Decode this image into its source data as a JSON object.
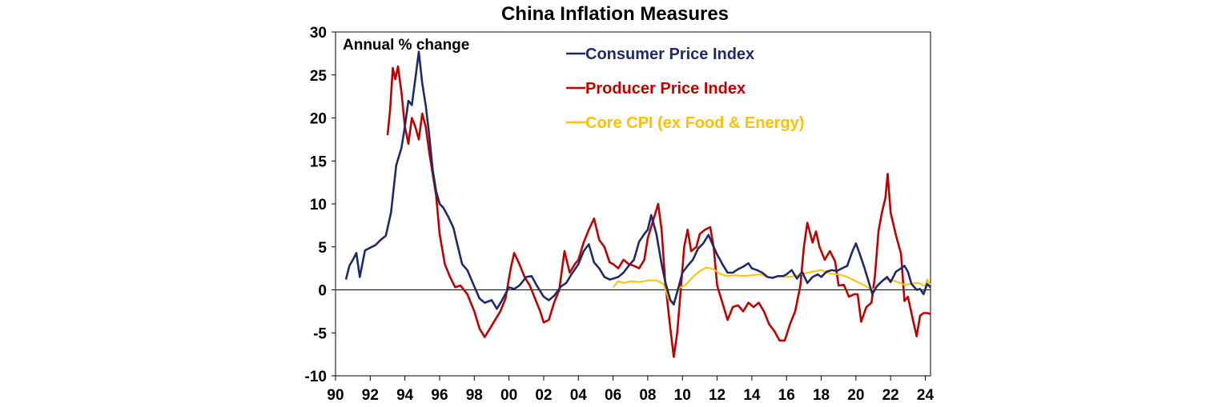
{
  "chart_data": {
    "type": "line",
    "title": "China Inflation Measures",
    "unit_label": "Annual % change",
    "xlabel": "",
    "ylabel": "",
    "xlim": [
      1990,
      2024.3
    ],
    "ylim": [
      -10,
      30
    ],
    "y_ticks": [
      30,
      25,
      20,
      15,
      10,
      5,
      0,
      -5,
      -10
    ],
    "x_ticks": [
      {
        "label": "90",
        "year": 1990
      },
      {
        "label": "92",
        "year": 1992
      },
      {
        "label": "94",
        "year": 1994
      },
      {
        "label": "96",
        "year": 1996
      },
      {
        "label": "98",
        "year": 1998
      },
      {
        "label": "00",
        "year": 2000
      },
      {
        "label": "02",
        "year": 2002
      },
      {
        "label": "04",
        "year": 2004
      },
      {
        "label": "06",
        "year": 2006
      },
      {
        "label": "08",
        "year": 2008
      },
      {
        "label": "10",
        "year": 2010
      },
      {
        "label": "12",
        "year": 2012
      },
      {
        "label": "14",
        "year": 2014
      },
      {
        "label": "16",
        "year": 2016
      },
      {
        "label": "18",
        "year": 2018
      },
      {
        "label": "20",
        "year": 2020
      },
      {
        "label": "22",
        "year": 2022
      },
      {
        "label": "24",
        "year": 2024
      }
    ],
    "legend_position": "top-center",
    "series": [
      {
        "name": "Consumer Price Index",
        "color": "#1f2a6b",
        "points": [
          [
            1990.6,
            1.2
          ],
          [
            1990.8,
            2.8
          ],
          [
            1991.0,
            3.5
          ],
          [
            1991.2,
            4.3
          ],
          [
            1991.4,
            1.5
          ],
          [
            1991.7,
            4.6
          ],
          [
            1992.0,
            4.9
          ],
          [
            1992.3,
            5.2
          ],
          [
            1992.6,
            5.8
          ],
          [
            1992.9,
            6.3
          ],
          [
            1993.2,
            9.0
          ],
          [
            1993.5,
            14.5
          ],
          [
            1993.8,
            16.5
          ],
          [
            1994.0,
            19.0
          ],
          [
            1994.2,
            22.0
          ],
          [
            1994.4,
            21.5
          ],
          [
            1994.6,
            24.5
          ],
          [
            1994.8,
            27.7
          ],
          [
            1995.0,
            24.0
          ],
          [
            1995.2,
            21.5
          ],
          [
            1995.4,
            18.0
          ],
          [
            1995.6,
            14.0
          ],
          [
            1995.8,
            11.5
          ],
          [
            1996.0,
            10.0
          ],
          [
            1996.2,
            9.6
          ],
          [
            1996.5,
            8.5
          ],
          [
            1996.8,
            7.2
          ],
          [
            1997.0,
            5.5
          ],
          [
            1997.3,
            3.0
          ],
          [
            1997.6,
            2.3
          ],
          [
            1998.0,
            0.4
          ],
          [
            1998.3,
            -1.0
          ],
          [
            1998.6,
            -1.5
          ],
          [
            1999.0,
            -1.2
          ],
          [
            1999.3,
            -2.2
          ],
          [
            1999.6,
            -1.2
          ],
          [
            2000.0,
            0.3
          ],
          [
            2000.3,
            0.1
          ],
          [
            2000.6,
            0.5
          ],
          [
            2001.0,
            1.5
          ],
          [
            2001.3,
            1.6
          ],
          [
            2001.6,
            0.5
          ],
          [
            2002.0,
            -0.8
          ],
          [
            2002.3,
            -1.2
          ],
          [
            2002.6,
            -0.7
          ],
          [
            2003.0,
            0.4
          ],
          [
            2003.3,
            0.8
          ],
          [
            2003.6,
            1.8
          ],
          [
            2004.0,
            3.0
          ],
          [
            2004.3,
            4.5
          ],
          [
            2004.6,
            5.3
          ],
          [
            2004.9,
            3.2
          ],
          [
            2005.2,
            2.5
          ],
          [
            2005.5,
            1.5
          ],
          [
            2005.8,
            1.2
          ],
          [
            2006.0,
            1.3
          ],
          [
            2006.3,
            1.5
          ],
          [
            2006.6,
            2.0
          ],
          [
            2006.9,
            2.8
          ],
          [
            2007.2,
            3.5
          ],
          [
            2007.5,
            5.6
          ],
          [
            2007.8,
            6.5
          ],
          [
            2008.0,
            7.0
          ],
          [
            2008.2,
            8.7
          ],
          [
            2008.5,
            6.5
          ],
          [
            2008.8,
            3.0
          ],
          [
            2009.0,
            1.0
          ],
          [
            2009.3,
            -1.2
          ],
          [
            2009.5,
            -1.7
          ],
          [
            2009.8,
            0.5
          ],
          [
            2010.0,
            2.0
          ],
          [
            2010.3,
            2.8
          ],
          [
            2010.6,
            3.5
          ],
          [
            2010.9,
            4.8
          ],
          [
            2011.2,
            5.4
          ],
          [
            2011.5,
            6.4
          ],
          [
            2011.8,
            5.0
          ],
          [
            2012.0,
            4.1
          ],
          [
            2012.3,
            3.0
          ],
          [
            2012.6,
            2.0
          ],
          [
            2012.9,
            2.0
          ],
          [
            2013.2,
            2.4
          ],
          [
            2013.5,
            2.7
          ],
          [
            2013.8,
            3.1
          ],
          [
            2014.0,
            2.5
          ],
          [
            2014.3,
            2.3
          ],
          [
            2014.6,
            2.0
          ],
          [
            2014.9,
            1.5
          ],
          [
            2015.2,
            1.4
          ],
          [
            2015.5,
            1.6
          ],
          [
            2015.8,
            1.6
          ],
          [
            2016.0,
            1.8
          ],
          [
            2016.3,
            2.3
          ],
          [
            2016.6,
            1.3
          ],
          [
            2016.9,
            2.1
          ],
          [
            2017.2,
            0.8
          ],
          [
            2017.5,
            1.5
          ],
          [
            2017.8,
            1.8
          ],
          [
            2018.0,
            1.5
          ],
          [
            2018.3,
            2.1
          ],
          [
            2018.6,
            2.3
          ],
          [
            2018.9,
            2.2
          ],
          [
            2019.2,
            2.5
          ],
          [
            2019.5,
            2.8
          ],
          [
            2019.8,
            4.5
          ],
          [
            2020.0,
            5.4
          ],
          [
            2020.2,
            4.3
          ],
          [
            2020.5,
            2.5
          ],
          [
            2020.8,
            0.5
          ],
          [
            2020.95,
            -0.5
          ],
          [
            2021.2,
            0.4
          ],
          [
            2021.5,
            1.0
          ],
          [
            2021.8,
            1.5
          ],
          [
            2022.0,
            0.9
          ],
          [
            2022.3,
            2.1
          ],
          [
            2022.6,
            2.5
          ],
          [
            2022.8,
            2.8
          ],
          [
            2023.0,
            2.1
          ],
          [
            2023.2,
            0.7
          ],
          [
            2023.5,
            0.0
          ],
          [
            2023.7,
            0.1
          ],
          [
            2023.9,
            -0.5
          ],
          [
            2024.1,
            0.7
          ],
          [
            2024.3,
            0.3
          ]
        ]
      },
      {
        "name": "Producer Price Index",
        "color": "#c00000",
        "points": [
          [
            1993.0,
            18.0
          ],
          [
            1993.15,
            21.0
          ],
          [
            1993.3,
            25.8
          ],
          [
            1993.45,
            24.5
          ],
          [
            1993.6,
            26.0
          ],
          [
            1993.8,
            23.0
          ],
          [
            1994.0,
            19.0
          ],
          [
            1994.2,
            17.0
          ],
          [
            1994.4,
            20.0
          ],
          [
            1994.6,
            19.0
          ],
          [
            1994.8,
            17.5
          ],
          [
            1995.0,
            20.5
          ],
          [
            1995.2,
            19.0
          ],
          [
            1995.4,
            16.0
          ],
          [
            1995.6,
            13.5
          ],
          [
            1995.8,
            11.0
          ],
          [
            1996.0,
            6.5
          ],
          [
            1996.3,
            3.0
          ],
          [
            1996.6,
            1.5
          ],
          [
            1996.9,
            0.3
          ],
          [
            1997.2,
            0.5
          ],
          [
            1997.6,
            -0.5
          ],
          [
            1998.0,
            -2.5
          ],
          [
            1998.3,
            -4.5
          ],
          [
            1998.6,
            -5.5
          ],
          [
            1998.9,
            -4.5
          ],
          [
            1999.2,
            -3.5
          ],
          [
            1999.5,
            -2.5
          ],
          [
            1999.8,
            -1.0
          ],
          [
            2000.1,
            2.5
          ],
          [
            2000.3,
            4.3
          ],
          [
            2000.6,
            3.0
          ],
          [
            2000.9,
            1.5
          ],
          [
            2001.2,
            0.5
          ],
          [
            2001.5,
            -1.0
          ],
          [
            2001.8,
            -2.5
          ],
          [
            2002.0,
            -3.8
          ],
          [
            2002.3,
            -3.5
          ],
          [
            2002.6,
            -1.5
          ],
          [
            2002.9,
            0.0
          ],
          [
            2003.2,
            4.5
          ],
          [
            2003.5,
            2.0
          ],
          [
            2003.8,
            3.0
          ],
          [
            2004.0,
            3.5
          ],
          [
            2004.3,
            5.5
          ],
          [
            2004.6,
            7.0
          ],
          [
            2004.9,
            8.3
          ],
          [
            2005.2,
            5.8
          ],
          [
            2005.5,
            5.0
          ],
          [
            2005.8,
            3.2
          ],
          [
            2006.0,
            3.0
          ],
          [
            2006.3,
            2.5
          ],
          [
            2006.6,
            3.5
          ],
          [
            2006.9,
            3.0
          ],
          [
            2007.2,
            2.8
          ],
          [
            2007.5,
            2.5
          ],
          [
            2007.8,
            3.5
          ],
          [
            2008.0,
            6.0
          ],
          [
            2008.3,
            8.0
          ],
          [
            2008.6,
            10.0
          ],
          [
            2008.8,
            7.0
          ],
          [
            2009.0,
            1.0
          ],
          [
            2009.3,
            -4.5
          ],
          [
            2009.5,
            -7.8
          ],
          [
            2009.7,
            -5.0
          ],
          [
            2009.9,
            0.0
          ],
          [
            2010.1,
            5.0
          ],
          [
            2010.3,
            7.0
          ],
          [
            2010.5,
            4.5
          ],
          [
            2010.8,
            5.0
          ],
          [
            2011.0,
            6.5
          ],
          [
            2011.3,
            7.0
          ],
          [
            2011.6,
            7.3
          ],
          [
            2011.8,
            5.0
          ],
          [
            2012.0,
            0.5
          ],
          [
            2012.3,
            -1.5
          ],
          [
            2012.6,
            -3.5
          ],
          [
            2012.9,
            -2.0
          ],
          [
            2013.2,
            -1.8
          ],
          [
            2013.5,
            -2.5
          ],
          [
            2013.8,
            -1.5
          ],
          [
            2014.1,
            -2.0
          ],
          [
            2014.4,
            -1.5
          ],
          [
            2014.7,
            -2.5
          ],
          [
            2015.0,
            -4.0
          ],
          [
            2015.3,
            -4.8
          ],
          [
            2015.6,
            -5.9
          ],
          [
            2015.9,
            -5.9
          ],
          [
            2016.2,
            -4.0
          ],
          [
            2016.5,
            -2.5
          ],
          [
            2016.8,
            0.5
          ],
          [
            2017.0,
            5.0
          ],
          [
            2017.2,
            7.8
          ],
          [
            2017.5,
            5.5
          ],
          [
            2017.7,
            6.8
          ],
          [
            2017.9,
            5.0
          ],
          [
            2018.2,
            3.5
          ],
          [
            2018.5,
            4.5
          ],
          [
            2018.8,
            3.3
          ],
          [
            2019.0,
            0.5
          ],
          [
            2019.3,
            0.6
          ],
          [
            2019.6,
            -0.8
          ],
          [
            2019.9,
            -0.5
          ],
          [
            2020.1,
            -0.5
          ],
          [
            2020.3,
            -3.7
          ],
          [
            2020.6,
            -2.0
          ],
          [
            2020.9,
            -1.5
          ],
          [
            2021.1,
            1.7
          ],
          [
            2021.3,
            6.8
          ],
          [
            2021.5,
            9.0
          ],
          [
            2021.7,
            10.7
          ],
          [
            2021.83,
            13.5
          ],
          [
            2022.0,
            9.0
          ],
          [
            2022.3,
            6.4
          ],
          [
            2022.6,
            4.2
          ],
          [
            2022.8,
            -1.3
          ],
          [
            2023.0,
            -0.8
          ],
          [
            2023.3,
            -3.6
          ],
          [
            2023.5,
            -5.4
          ],
          [
            2023.7,
            -3.0
          ],
          [
            2023.9,
            -2.7
          ],
          [
            2024.1,
            -2.7
          ],
          [
            2024.3,
            -2.8
          ]
        ]
      },
      {
        "name": "Core CPI (ex Food & Energy)",
        "color": "#ffc000",
        "points": [
          [
            2006.0,
            0.3
          ],
          [
            2006.3,
            1.0
          ],
          [
            2006.6,
            0.8
          ],
          [
            2007.0,
            1.0
          ],
          [
            2007.5,
            0.9
          ],
          [
            2008.0,
            1.1
          ],
          [
            2008.5,
            1.1
          ],
          [
            2008.9,
            0.7
          ],
          [
            2009.2,
            -1.1
          ],
          [
            2009.5,
            -1.4
          ],
          [
            2009.8,
            0.2
          ],
          [
            2010.2,
            0.6
          ],
          [
            2010.6,
            1.5
          ],
          [
            2011.0,
            2.2
          ],
          [
            2011.4,
            2.6
          ],
          [
            2011.8,
            2.4
          ],
          [
            2012.2,
            1.8
          ],
          [
            2012.6,
            1.6
          ],
          [
            2013.0,
            1.7
          ],
          [
            2013.5,
            1.6
          ],
          [
            2014.0,
            1.7
          ],
          [
            2014.5,
            1.8
          ],
          [
            2015.0,
            1.4
          ],
          [
            2015.5,
            1.6
          ],
          [
            2016.0,
            1.5
          ],
          [
            2016.5,
            1.6
          ],
          [
            2017.0,
            1.9
          ],
          [
            2017.5,
            2.1
          ],
          [
            2018.0,
            2.3
          ],
          [
            2018.5,
            1.9
          ],
          [
            2019.0,
            1.8
          ],
          [
            2019.5,
            1.5
          ],
          [
            2020.0,
            1.0
          ],
          [
            2020.5,
            0.5
          ],
          [
            2020.9,
            0.0
          ],
          [
            2021.2,
            0.3
          ],
          [
            2021.6,
            1.2
          ],
          [
            2022.0,
            1.2
          ],
          [
            2022.4,
            0.9
          ],
          [
            2022.8,
            0.6
          ],
          [
            2023.2,
            0.7
          ],
          [
            2023.6,
            0.8
          ],
          [
            2024.0,
            0.4
          ],
          [
            2024.1,
            1.2
          ],
          [
            2024.3,
            0.6
          ]
        ]
      }
    ]
  }
}
